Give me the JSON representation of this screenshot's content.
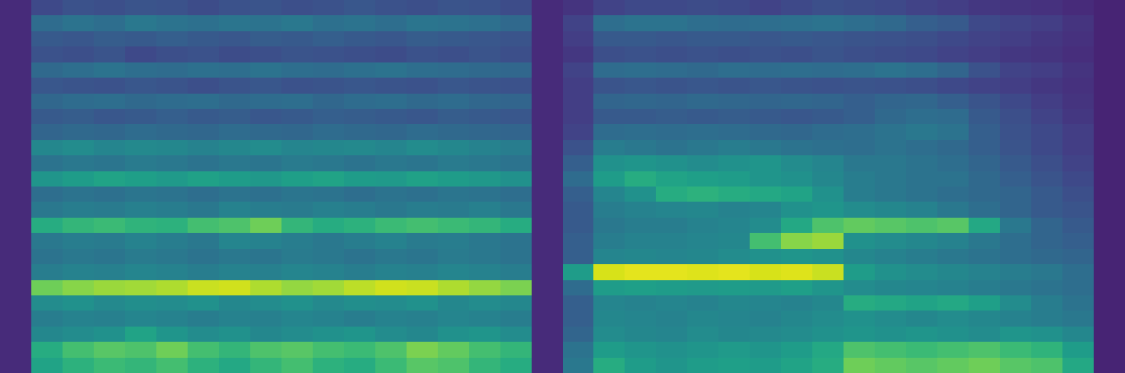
{
  "chart_data": {
    "type": "heatmap",
    "color": "Viridis",
    "zlim": [
      0,
      100
    ],
    "tick_labels": false,
    "cells": [
      [
        12,
        22,
        25,
        24,
        26,
        25,
        23,
        25,
        26,
        24,
        25,
        27,
        25,
        24,
        26,
        25,
        23,
        12,
        15,
        20,
        22,
        22,
        23,
        22,
        20,
        22,
        24,
        23,
        22,
        20,
        18,
        16,
        15,
        14,
        12,
        10
      ],
      [
        12,
        35,
        38,
        36,
        40,
        38,
        37,
        39,
        38,
        40,
        37,
        38,
        36,
        39,
        38,
        37,
        34,
        12,
        20,
        36,
        38,
        38,
        36,
        35,
        36,
        37,
        38,
        36,
        34,
        30,
        28,
        22,
        20,
        18,
        15,
        10
      ],
      [
        12,
        28,
        27,
        29,
        28,
        30,
        28,
        27,
        29,
        28,
        30,
        28,
        27,
        29,
        28,
        27,
        26,
        12,
        18,
        28,
        28,
        27,
        28,
        28,
        27,
        28,
        27,
        26,
        25,
        24,
        22,
        20,
        18,
        16,
        14,
        10
      ],
      [
        12,
        25,
        24,
        26,
        22,
        24,
        25,
        23,
        24,
        26,
        25,
        24,
        23,
        25,
        24,
        26,
        24,
        12,
        16,
        24,
        25,
        24,
        25,
        24,
        25,
        24,
        26,
        24,
        23,
        22,
        20,
        18,
        16,
        15,
        13,
        10
      ],
      [
        12,
        34,
        36,
        38,
        36,
        35,
        37,
        36,
        38,
        36,
        35,
        37,
        38,
        36,
        35,
        34,
        33,
        12,
        20,
        35,
        36,
        35,
        34,
        36,
        35,
        36,
        35,
        36,
        38,
        36,
        32,
        25,
        20,
        18,
        15,
        10
      ],
      [
        12,
        27,
        26,
        25,
        27,
        26,
        24,
        26,
        27,
        25,
        26,
        27,
        26,
        25,
        27,
        26,
        25,
        12,
        18,
        26,
        27,
        26,
        27,
        26,
        27,
        26,
        25,
        26,
        25,
        24,
        22,
        20,
        18,
        16,
        14,
        10
      ],
      [
        12,
        33,
        35,
        36,
        34,
        35,
        36,
        34,
        35,
        36,
        33,
        35,
        36,
        34,
        35,
        33,
        32,
        12,
        18,
        32,
        33,
        32,
        34,
        33,
        32,
        33,
        32,
        30,
        32,
        33,
        30,
        26,
        22,
        18,
        15,
        10
      ],
      [
        12,
        28,
        29,
        27,
        28,
        30,
        28,
        29,
        27,
        28,
        30,
        29,
        28,
        27,
        29,
        28,
        27,
        12,
        18,
        28,
        28,
        29,
        28,
        29,
        28,
        27,
        28,
        30,
        34,
        36,
        35,
        28,
        24,
        20,
        16,
        10
      ],
      [
        12,
        32,
        34,
        33,
        35,
        34,
        33,
        35,
        34,
        33,
        35,
        34,
        33,
        35,
        34,
        33,
        32,
        12,
        20,
        35,
        36,
        35,
        36,
        35,
        34,
        33,
        35,
        36,
        38,
        40,
        38,
        30,
        25,
        22,
        18,
        10
      ],
      [
        12,
        46,
        48,
        45,
        47,
        46,
        44,
        46,
        48,
        45,
        46,
        47,
        45,
        48,
        46,
        44,
        42,
        12,
        25,
        42,
        40,
        38,
        40,
        42,
        40,
        38,
        37,
        36,
        38,
        36,
        34,
        30,
        26,
        22,
        18,
        10
      ],
      [
        12,
        38,
        40,
        39,
        41,
        40,
        38,
        40,
        39,
        41,
        40,
        38,
        40,
        39,
        41,
        40,
        38,
        12,
        30,
        50,
        52,
        50,
        48,
        50,
        52,
        48,
        45,
        40,
        40,
        38,
        36,
        32,
        28,
        24,
        20,
        10
      ],
      [
        12,
        52,
        55,
        58,
        56,
        54,
        57,
        55,
        53,
        56,
        58,
        55,
        54,
        57,
        55,
        53,
        50,
        12,
        35,
        55,
        62,
        58,
        56,
        55,
        52,
        50,
        46,
        42,
        40,
        38,
        38,
        34,
        30,
        26,
        22,
        10
      ],
      [
        12,
        36,
        38,
        37,
        39,
        38,
        36,
        38,
        37,
        39,
        38,
        36,
        38,
        37,
        39,
        38,
        36,
        12,
        30,
        45,
        50,
        62,
        64,
        62,
        60,
        58,
        50,
        42,
        40,
        38,
        36,
        34,
        32,
        28,
        24,
        10
      ],
      [
        12,
        40,
        42,
        41,
        43,
        42,
        40,
        44,
        42,
        41,
        43,
        42,
        40,
        42,
        41,
        43,
        40,
        12,
        28,
        42,
        44,
        45,
        46,
        44,
        45,
        50,
        52,
        48,
        46,
        44,
        40,
        36,
        32,
        28,
        26,
        10
      ],
      [
        12,
        62,
        66,
        68,
        65,
        64,
        70,
        72,
        78,
        66,
        62,
        64,
        68,
        70,
        68,
        66,
        62,
        12,
        28,
        40,
        42,
        42,
        44,
        45,
        48,
        60,
        72,
        76,
        74,
        72,
        74,
        60,
        40,
        32,
        28,
        10
      ],
      [
        12,
        40,
        42,
        41,
        44,
        42,
        40,
        45,
        44,
        42,
        40,
        42,
        44,
        41,
        42,
        40,
        38,
        12,
        30,
        42,
        44,
        44,
        45,
        46,
        70,
        82,
        85,
        50,
        48,
        46,
        44,
        40,
        36,
        32,
        30,
        10
      ],
      [
        12,
        38,
        40,
        39,
        41,
        40,
        38,
        40,
        39,
        41,
        40,
        38,
        40,
        39,
        41,
        40,
        38,
        12,
        30,
        45,
        46,
        45,
        46,
        48,
        50,
        52,
        50,
        46,
        44,
        42,
        40,
        38,
        36,
        34,
        32,
        10
      ],
      [
        12,
        42,
        44,
        43,
        45,
        44,
        42,
        44,
        43,
        45,
        44,
        42,
        44,
        43,
        45,
        44,
        42,
        12,
        55,
        94,
        96,
        96,
        95,
        96,
        94,
        95,
        92,
        55,
        50,
        48,
        46,
        44,
        42,
        40,
        36,
        10
      ],
      [
        12,
        78,
        82,
        85,
        86,
        88,
        92,
        93,
        88,
        84,
        86,
        90,
        93,
        92,
        88,
        84,
        80,
        12,
        35,
        55,
        56,
        55,
        54,
        55,
        54,
        56,
        52,
        48,
        46,
        45,
        44,
        42,
        40,
        38,
        36,
        10
      ],
      [
        12,
        48,
        50,
        47,
        49,
        48,
        50,
        46,
        48,
        50,
        47,
        49,
        48,
        50,
        46,
        48,
        46,
        12,
        30,
        45,
        44,
        45,
        44,
        46,
        45,
        44,
        46,
        62,
        60,
        58,
        60,
        56,
        48,
        42,
        38,
        10
      ],
      [
        12,
        42,
        44,
        43,
        45,
        44,
        42,
        44,
        43,
        45,
        44,
        42,
        44,
        43,
        45,
        44,
        42,
        12,
        30,
        46,
        45,
        44,
        46,
        45,
        44,
        46,
        48,
        50,
        48,
        46,
        48,
        46,
        44,
        42,
        40,
        10
      ],
      [
        12,
        46,
        48,
        50,
        58,
        52,
        48,
        50,
        46,
        48,
        50,
        52,
        48,
        46,
        50,
        52,
        48,
        12,
        32,
        48,
        46,
        45,
        48,
        46,
        47,
        48,
        50,
        52,
        50,
        52,
        50,
        48,
        52,
        50,
        46,
        10
      ],
      [
        12,
        62,
        70,
        74,
        72,
        78,
        70,
        66,
        72,
        74,
        70,
        68,
        72,
        80,
        76,
        70,
        66,
        12,
        38,
        55,
        52,
        50,
        52,
        54,
        52,
        55,
        60,
        72,
        70,
        68,
        70,
        72,
        68,
        65,
        55,
        10
      ],
      [
        12,
        58,
        64,
        68,
        66,
        70,
        64,
        60,
        66,
        70,
        64,
        62,
        68,
        74,
        72,
        66,
        62,
        12,
        40,
        62,
        55,
        52,
        55,
        56,
        55,
        58,
        62,
        78,
        76,
        74,
        76,
        78,
        74,
        72,
        60,
        10
      ]
    ]
  }
}
